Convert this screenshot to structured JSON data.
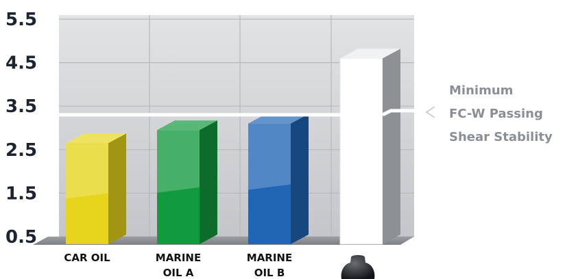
{
  "chart_data": {
    "type": "bar",
    "categories": [
      "CAR OIL",
      "MARINE OIL A",
      "MARINE OIL B",
      ""
    ],
    "category_lines": [
      [
        "CAR OIL"
      ],
      [
        "MARINE",
        "OIL A"
      ],
      [
        "MARINE",
        "OIL B"
      ],
      []
    ],
    "values": [
      2.65,
      2.95,
      3.1,
      4.6
    ],
    "ylim": [
      0.5,
      5.5
    ],
    "yticks": [
      5.5,
      4.5,
      3.5,
      2.5,
      1.5,
      0.5
    ],
    "ytick_labels": [
      "5.5",
      "4.5",
      "3.5",
      "2.5",
      "1.5",
      "0.5"
    ],
    "grid": true,
    "threshold": {
      "value": 3.3,
      "label_lines": [
        "Minimum",
        "FC-W Passing",
        "Shear Stability"
      ]
    },
    "colors": [
      "#e6d51c",
      "#129a3e",
      "#2166b5",
      "#ffffff"
    ],
    "background_color": "#d2d3d5",
    "grid_color": "#b6b8bb",
    "threshold_color": "#ffffff",
    "annotation_color": "#8a8f96"
  }
}
